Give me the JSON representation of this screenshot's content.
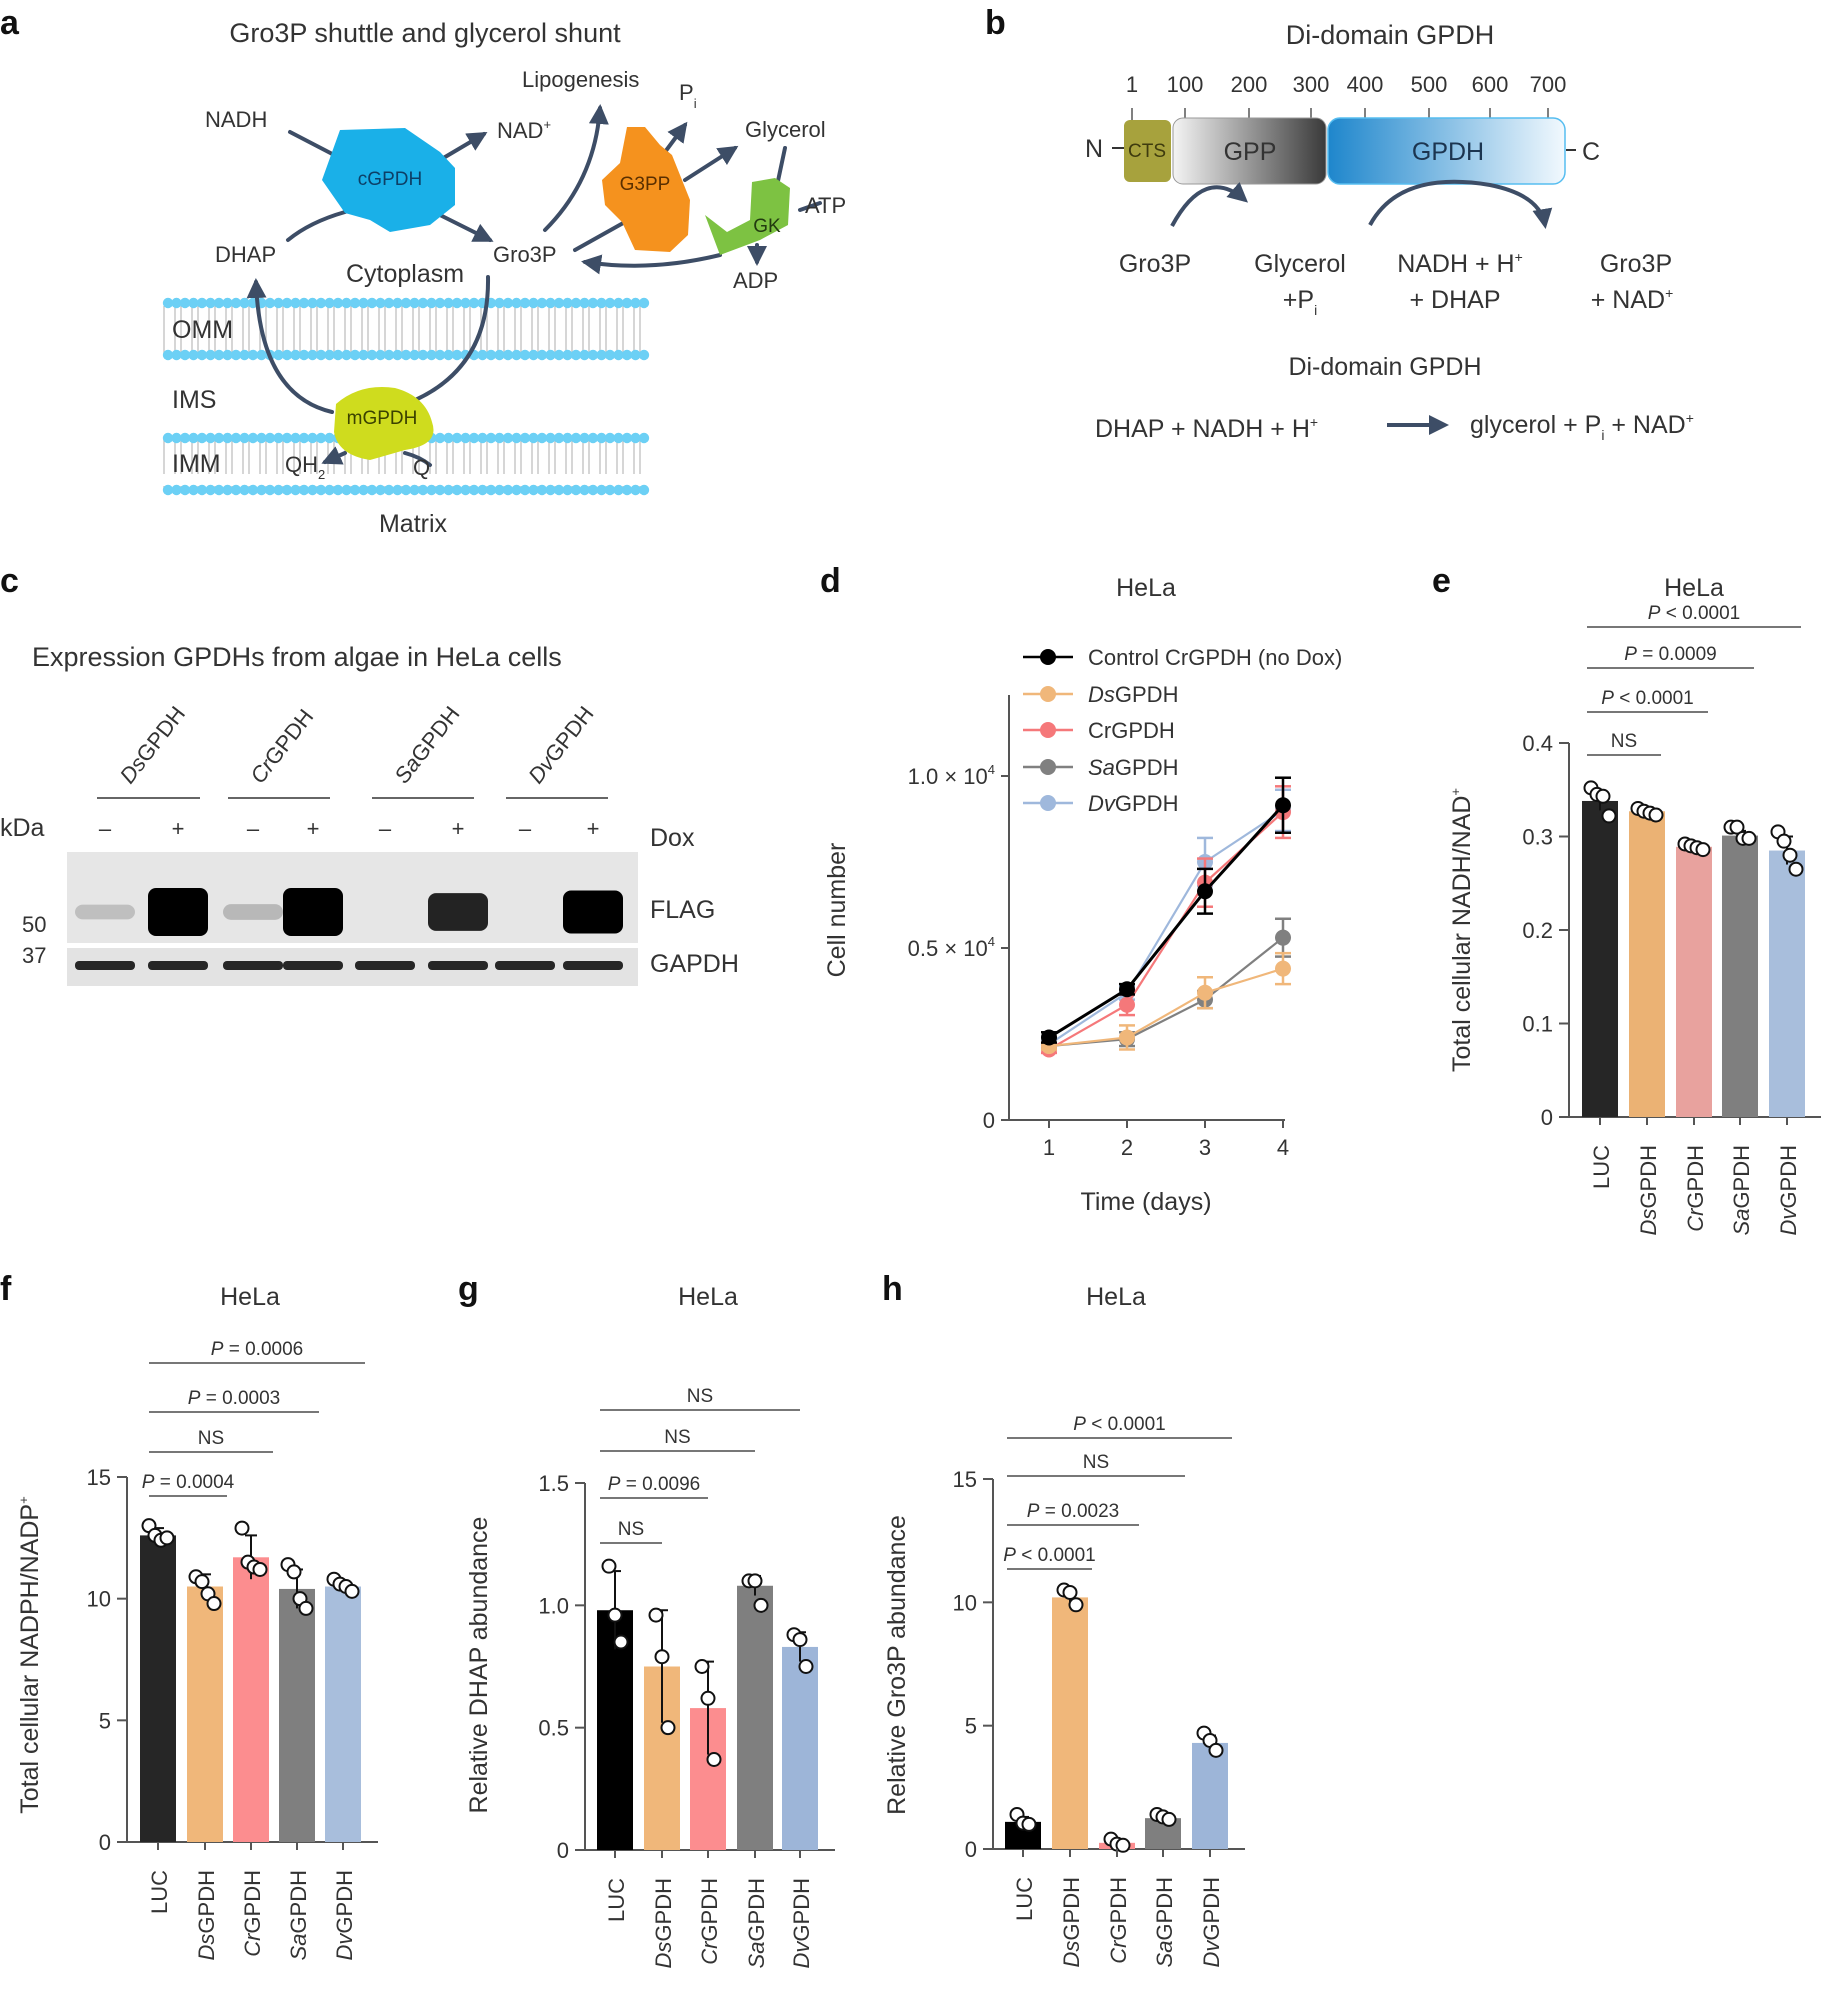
{
  "panels": {
    "a": {
      "letter": "a",
      "title": "Gro3P shuttle and glycerol shunt",
      "enzymes": {
        "cGPDH": "cGPDH",
        "G3PP": "G3PP",
        "GK": "GK",
        "mGPDH": "mGPDH"
      },
      "metabolites": {
        "NADH": "NADH",
        "NAD": "NAD",
        "NAD_sup": "+",
        "DHAP": "DHAP",
        "Gro3P": "Gro3P",
        "Lipogenesis": "Lipogenesis",
        "Pi": "P",
        "Pi_sub": "i",
        "Glycerol": "Glycerol",
        "ATP": "ATP",
        "ADP": "ADP",
        "QH2": "QH",
        "QH2_sub": "2",
        "Q": "Q"
      },
      "compartments": {
        "cytoplasm": "Cytoplasm",
        "omm": "OMM",
        "ims": "IMS",
        "imm": "IMM",
        "matrix": "Matrix"
      },
      "colors": {
        "cGPDH": "#1ab0e8",
        "G3PP": "#f5921e",
        "GK": "#7dc242",
        "mGPDH": "#cfdc1e",
        "membrane": "#6cd0f5",
        "arrow": "#3d4d66"
      }
    },
    "b": {
      "letter": "b",
      "title": "Di-domain GPDH",
      "ticks": [
        "1",
        "100",
        "200",
        "300",
        "400",
        "500",
        "600",
        "700"
      ],
      "n_term": "N",
      "c_term": "C",
      "domains": {
        "cts": "CTS",
        "gpp": "GPP",
        "gpdh": "GPDH"
      },
      "gpp_reaction": {
        "substrate": "Gro3P",
        "product_1": "Glycerol",
        "product_2": "+P",
        "product_2_sub": "i"
      },
      "gpdh_reaction": {
        "substrate_1": "NADH + H",
        "substrate_1_sup": "+",
        "substrate_2": "+ DHAP",
        "product_1": "Gro3P",
        "product_2": "+ NAD",
        "product_2_sup": "+"
      },
      "overall_title": "Di-domain GPDH",
      "overall_left": "DHAP + NADH + H",
      "overall_left_sup": "+",
      "overall_right_1": "glycerol + P",
      "overall_right_sub": "i",
      "overall_right_2": " + NAD",
      "overall_right_sup": "+",
      "colors": {
        "cts": "#a7a23d",
        "gpp_dark": "#3a3a3a",
        "gpdh": "#1e86cc"
      }
    },
    "c": {
      "letter": "c",
      "title": "Expression GPDHs from algae in HeLa cells",
      "groups": [
        "DsGPDH",
        "CrGPDH",
        "SaGPDH",
        "DvGPDH"
      ],
      "dox_states": [
        "–",
        "+",
        "–",
        "+",
        "–",
        "+",
        "–",
        "+"
      ],
      "kda_label": "kDa",
      "dox_label": "Dox",
      "markers": [
        "50",
        "37"
      ],
      "bands": [
        "FLAG",
        "GAPDH"
      ],
      "flag_intensity": [
        0.02,
        1.0,
        0.05,
        1.0,
        0.0,
        0.7,
        0.0,
        0.85
      ]
    },
    "d": {
      "letter": "d"
    },
    "e": {
      "letter": "e"
    },
    "f": {
      "letter": "f"
    },
    "g": {
      "letter": "g"
    },
    "h": {
      "letter": "h"
    }
  },
  "chart_data": [
    {
      "id": "d",
      "type": "line",
      "title": "HeLa",
      "xlabel": "Time (days)",
      "ylabel": "Cell number",
      "x": [
        1,
        2,
        3,
        4
      ],
      "xticks": [
        "1",
        "2",
        "3",
        "4"
      ],
      "yticks": [
        {
          "v": 0,
          "label": "0"
        },
        {
          "v": 5000,
          "label": "0.5 × 10",
          "sup": "4"
        },
        {
          "v": 10000,
          "label": "1.0 × 10",
          "sup": "4"
        }
      ],
      "ylim": [
        0,
        12000
      ],
      "legend_position": "top-left",
      "series": [
        {
          "name": "Control CrGPDH (no Dox)",
          "italic_prefix": "",
          "rest": "Control CrGPDH (no Dox)",
          "color": "#000000",
          "values": [
            2400,
            3800,
            6650,
            9150
          ],
          "err": [
            150,
            150,
            650,
            800
          ]
        },
        {
          "name": "DsGPDH",
          "italic_prefix": "Ds",
          "rest": "GPDH",
          "color": "#f0b77a",
          "values": [
            2150,
            2400,
            3700,
            4400
          ],
          "err": [
            100,
            350,
            450,
            450
          ]
        },
        {
          "name": "CrGPDH",
          "italic_prefix": "",
          "rest": "CrGPDH",
          "color": "#f5787a",
          "values": [
            2050,
            3350,
            6900,
            8950
          ],
          "err": [
            100,
            300,
            700,
            750
          ]
        },
        {
          "name": "SaGPDH",
          "italic_prefix": "Sa",
          "rest": "GPDH",
          "color": "#808080",
          "values": [
            2150,
            2350,
            3500,
            5300
          ],
          "err": [
            100,
            200,
            250,
            550
          ]
        },
        {
          "name": "DvGPDH",
          "italic_prefix": "Dv",
          "rest": "GPDH",
          "color": "#9fb8dc",
          "values": [
            2200,
            3700,
            7500,
            9000
          ],
          "err": [
            100,
            200,
            700,
            600
          ]
        }
      ]
    },
    {
      "id": "e",
      "type": "bar",
      "title": "HeLa",
      "ylabel": "Total cellular NADH/NAD",
      "ylabel_sup": "+",
      "categories": [
        "LUC",
        "DsGPDH",
        "CrGPDH",
        "SaGPDH",
        "DvGPDH"
      ],
      "category_italic": [
        "",
        "Ds",
        "Cr",
        "Sa",
        "Dv"
      ],
      "colors": [
        "#262626",
        "#ebb274",
        "#e8a29e",
        "#7f7f7f",
        "#a8bedc"
      ],
      "values": [
        0.338,
        0.327,
        0.289,
        0.301,
        0.285
      ],
      "err": [
        0.01,
        0.004,
        0.004,
        0.005,
        0.015
      ],
      "points": [
        [
          0.352,
          0.345,
          0.343,
          0.322
        ],
        [
          0.33,
          0.327,
          0.325,
          0.323
        ],
        [
          0.292,
          0.29,
          0.288,
          0.286
        ],
        [
          0.31,
          0.31,
          0.298,
          0.298
        ],
        [
          0.305,
          0.295,
          0.28,
          0.265
        ]
      ],
      "yticks": [
        "0",
        "0.1",
        "0.2",
        "0.3",
        "0.4"
      ],
      "ylim": [
        0,
        0.4
      ],
      "comparisons": [
        {
          "label": "NS",
          "from": 0,
          "to": 1
        },
        {
          "label": "P < 0.0001",
          "from": 0,
          "to": 2
        },
        {
          "label": "P = 0.0009",
          "from": 0,
          "to": 3
        },
        {
          "label": "P < 0.0001",
          "from": 0,
          "to": 4
        }
      ]
    },
    {
      "id": "f",
      "type": "bar",
      "title": "HeLa",
      "ylabel": "Total cellular NADPH/NADP",
      "ylabel_sup": "+",
      "categories": [
        "LUC",
        "DsGPDH",
        "CrGPDH",
        "SaGPDH",
        "DvGPDH"
      ],
      "category_italic": [
        "",
        "Ds",
        "Cr",
        "Sa",
        "Dv"
      ],
      "colors": [
        "#262626",
        "#f0b77a",
        "#fc8d8f",
        "#7f7f7f",
        "#a8bedc"
      ],
      "values": [
        12.6,
        10.5,
        11.7,
        10.4,
        10.5
      ],
      "err": [
        0.3,
        0.5,
        0.9,
        0.8,
        0.2
      ],
      "points": [
        [
          13.0,
          12.6,
          12.4,
          12.5
        ],
        [
          10.9,
          10.7,
          10.2,
          9.8
        ],
        [
          12.9,
          11.5,
          11.3,
          11.2
        ],
        [
          11.4,
          11.1,
          10.0,
          9.6
        ],
        [
          10.8,
          10.6,
          10.5,
          10.3
        ]
      ],
      "yticks": [
        "0",
        "5",
        "10",
        "15"
      ],
      "ylim": [
        0,
        15
      ],
      "comparisons": [
        {
          "label": "P = 0.0004",
          "from": 0,
          "to": 1
        },
        {
          "label": "NS",
          "from": 0,
          "to": 2
        },
        {
          "label": "P = 0.0003",
          "from": 0,
          "to": 3
        },
        {
          "label": "P = 0.0006",
          "from": 0,
          "to": 4
        }
      ]
    },
    {
      "id": "g",
      "type": "bar",
      "title": "HeLa",
      "ylabel": "Relative DHAP abundance",
      "ylabel_sup": "",
      "categories": [
        "LUC",
        "DsGPDH",
        "CrGPDH",
        "SaGPDH",
        "DvGPDH"
      ],
      "category_italic": [
        "",
        "Ds",
        "Cr",
        "Sa",
        "Dv"
      ],
      "colors": [
        "#000000",
        "#f0b77a",
        "#fc8d8f",
        "#7f7f7f",
        "#9db5d8"
      ],
      "values": [
        0.98,
        0.75,
        0.58,
        1.08,
        0.83
      ],
      "err": [
        0.16,
        0.23,
        0.19,
        0.04,
        0.06
      ],
      "points": [
        [
          1.16,
          0.96,
          0.85
        ],
        [
          0.96,
          0.79,
          0.5
        ],
        [
          0.75,
          0.62,
          0.37
        ],
        [
          1.1,
          1.1,
          1.0
        ],
        [
          0.88,
          0.86,
          0.75
        ]
      ],
      "yticks": [
        "0",
        "0.5",
        "1.0",
        "1.5"
      ],
      "ylim": [
        0,
        1.5
      ],
      "comparisons": [
        {
          "label": "NS",
          "from": 0,
          "to": 1
        },
        {
          "label": "P = 0.0096",
          "from": 0,
          "to": 2
        },
        {
          "label": "NS",
          "from": 0,
          "to": 3
        },
        {
          "label": "NS",
          "from": 0,
          "to": 4
        }
      ]
    },
    {
      "id": "h",
      "type": "bar",
      "title": "HeLa",
      "ylabel": "Relative Gro3P abundance",
      "ylabel_sup": "",
      "categories": [
        "LUC",
        "DsGPDH",
        "CrGPDH",
        "SaGPDH",
        "DvGPDH"
      ],
      "category_italic": [
        "",
        "Ds",
        "Cr",
        "Sa",
        "Dv"
      ],
      "colors": [
        "#000000",
        "#f0b77a",
        "#fc8d8f",
        "#7f7f7f",
        "#9db5d8"
      ],
      "values": [
        1.1,
        10.2,
        0.25,
        1.25,
        4.3
      ],
      "err": [
        0.2,
        0.3,
        0.1,
        0.1,
        0.3
      ],
      "points": [
        [
          1.4,
          1.05,
          1.0
        ],
        [
          10.5,
          10.4,
          9.9
        ],
        [
          0.4,
          0.2,
          0.15
        ],
        [
          1.4,
          1.3,
          1.2
        ],
        [
          4.7,
          4.4,
          4.0
        ]
      ],
      "yticks": [
        "0",
        "5",
        "10",
        "15"
      ],
      "ylim": [
        0,
        15
      ],
      "comparisons": [
        {
          "label": "P < 0.0001",
          "from": 0,
          "to": 1
        },
        {
          "label": "P = 0.0023",
          "from": 0,
          "to": 2
        },
        {
          "label": "NS",
          "from": 0,
          "to": 3
        },
        {
          "label": "P < 0.0001",
          "from": 0,
          "to": 4
        }
      ]
    }
  ]
}
